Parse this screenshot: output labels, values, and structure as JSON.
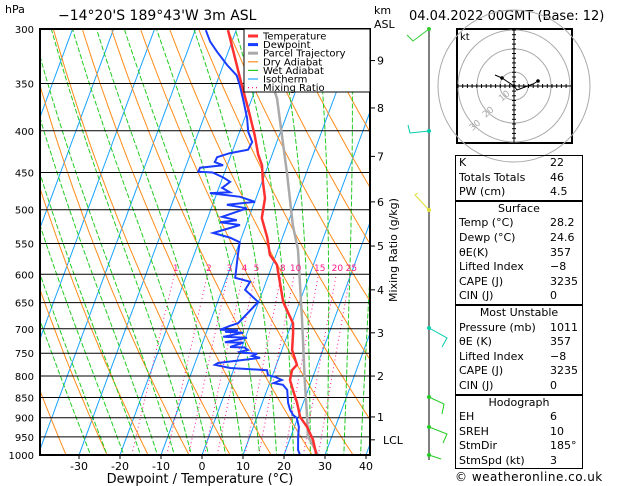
{
  "header": {
    "pressure_unit": "hPa",
    "location": "−14°20'S  189°43'W  3m ASL",
    "height_unit_1": "km",
    "height_unit_2": "ASL",
    "datetime": "04.04.2022  00GMT  (Base: 12)"
  },
  "chart_data": {
    "type": "skew-t",
    "xlabel": "Dewpoint / Temperature (°C)",
    "ylabel": "hPa",
    "y2label": "Mixing Ratio (g/kg)",
    "xlim": [
      -39.5,
      41
    ],
    "ylim": [
      1000,
      300
    ],
    "grid": true,
    "legend_placement": "top-right",
    "x_ticks": [
      "-30",
      "-20",
      "-10",
      "0",
      "10",
      "20",
      "30",
      "40"
    ],
    "pressure_levels": [
      "300",
      "350",
      "400",
      "450",
      "500",
      "550",
      "600",
      "650",
      "700",
      "750",
      "800",
      "850",
      "900",
      "950",
      "1000"
    ],
    "km_ticks": [
      {
        "label": "9",
        "p": 328
      },
      {
        "label": "8",
        "p": 375
      },
      {
        "label": "7",
        "p": 430
      },
      {
        "label": "6",
        "p": 489
      },
      {
        "label": "5",
        "p": 554
      },
      {
        "label": "4",
        "p": 627
      },
      {
        "label": "3",
        "p": 708
      },
      {
        "label": "2",
        "p": 800
      },
      {
        "label": "1",
        "p": 898
      },
      {
        "label": "LCL",
        "p": 958
      }
    ],
    "mixing_ratio_labels": [
      "1",
      "2",
      "3",
      "4",
      "5",
      "8",
      "10",
      "15",
      "20",
      "25"
    ],
    "legend": [
      {
        "name": "Temperature",
        "color": "#ff3030"
      },
      {
        "name": "Dewpoint",
        "color": "#1a3cff"
      },
      {
        "name": "Parcel Trajectory",
        "color": "#aaaaaa"
      },
      {
        "name": "Dry Adiabat",
        "color": "#ff8c1a"
      },
      {
        "name": "Wet Adiabat",
        "color": "#22cc22"
      },
      {
        "name": "Isotherm",
        "color": "#1aa3ff"
      },
      {
        "name": "Mixing Ratio",
        "color": "#ff1a8c"
      }
    ],
    "series": {
      "temperature": [
        [
          301,
          -32.0
        ],
        [
          352,
          -23.6
        ],
        [
          375,
          -20.1
        ],
        [
          405,
          -16.0
        ],
        [
          428,
          -13.4
        ],
        [
          441,
          -11.5
        ],
        [
          462,
          -9.8
        ],
        [
          484,
          -7.8
        ],
        [
          512,
          -6.8
        ],
        [
          541,
          -3.7
        ],
        [
          568,
          -1.5
        ],
        [
          584,
          1.1
        ],
        [
          615,
          3.5
        ],
        [
          649,
          6.0
        ],
        [
          689,
          10.3
        ],
        [
          708,
          11.2
        ],
        [
          743,
          12.5
        ],
        [
          775,
          15.0
        ],
        [
          787,
          14.3
        ],
        [
          809,
          14.7
        ],
        [
          832,
          16.3
        ],
        [
          863,
          18.5
        ],
        [
          898,
          20.5
        ],
        [
          924,
          23.1
        ],
        [
          958,
          25.7
        ],
        [
          994,
          27.6
        ],
        [
          1011,
          28.2
        ]
      ],
      "dewpoint": [
        [
          301,
          -37.4
        ],
        [
          311,
          -35.3
        ],
        [
          320,
          -32.7
        ],
        [
          332,
          -29.1
        ],
        [
          342,
          -25.8
        ],
        [
          352,
          -24.1
        ],
        [
          365,
          -22.2
        ],
        [
          386,
          -19.4
        ],
        [
          401,
          -17.9
        ],
        [
          413,
          -16.0
        ],
        [
          422,
          -16.3
        ],
        [
          426,
          -20.4
        ],
        [
          431,
          -23.2
        ],
        [
          437,
          -23.3
        ],
        [
          441,
          -21.0
        ],
        [
          444,
          -26.4
        ],
        [
          449,
          -26.5
        ],
        [
          450,
          -22.9
        ],
        [
          456,
          -20.0
        ],
        [
          462,
          -17.8
        ],
        [
          470,
          -19.2
        ],
        [
          476,
          -16.9
        ],
        [
          477,
          -21.7
        ],
        [
          482,
          -14.0
        ],
        [
          489,
          -9.9
        ],
        [
          493,
          -16.5
        ],
        [
          498,
          -11.3
        ],
        [
          510,
          -16.6
        ],
        [
          515,
          -12.7
        ],
        [
          518,
          -16.6
        ],
        [
          522,
          -11.5
        ],
        [
          534,
          -17.3
        ],
        [
          541,
          -12.8
        ],
        [
          548,
          -10.0
        ],
        [
          568,
          -9.3
        ],
        [
          606,
          -7.9
        ],
        [
          613,
          -3.9
        ],
        [
          627,
          -4.4
        ],
        [
          649,
          -0.1
        ],
        [
          689,
          -3.1
        ],
        [
          694,
          -4.8
        ],
        [
          702,
          -6.9
        ],
        [
          703,
          -2.5
        ],
        [
          706,
          -5.5
        ],
        [
          708,
          -1.0
        ],
        [
          716,
          -5.5
        ],
        [
          718,
          0.4
        ],
        [
          727,
          -4.6
        ],
        [
          728,
          -0.1
        ],
        [
          737,
          -2.9
        ],
        [
          738,
          0.7
        ],
        [
          743,
          1.7
        ],
        [
          747,
          0.0
        ],
        [
          749,
          0.8
        ],
        [
          751,
          4.3
        ],
        [
          756,
          3.3
        ],
        [
          760,
          5.4
        ],
        [
          771,
          -4.4
        ],
        [
          775,
          -5.0
        ],
        [
          782,
          -1.0
        ],
        [
          787,
          8.2
        ],
        [
          798,
          8.9
        ],
        [
          802,
          10.8
        ],
        [
          809,
          12.7
        ],
        [
          813,
          11.7
        ],
        [
          816,
          11.0
        ],
        [
          818,
          12.0
        ],
        [
          820,
          13.4
        ],
        [
          832,
          14.9
        ],
        [
          863,
          16.3
        ],
        [
          880,
          17.4
        ],
        [
          893,
          18.6
        ],
        [
          901,
          19.8
        ],
        [
          924,
          21.1
        ],
        [
          950,
          21.8
        ],
        [
          986,
          23.0
        ],
        [
          1000,
          23.9
        ],
        [
          1011,
          24.6
        ]
      ],
      "parcel": [
        [
          1011,
          28.2
        ],
        [
          1000,
          28.3
        ],
        [
          962,
          25.3
        ],
        [
          950,
          24.2
        ],
        [
          898,
          22.2
        ],
        [
          816,
          18.6
        ],
        [
          677,
          11.9
        ],
        [
          560,
          4.9
        ],
        [
          522,
          1.4
        ],
        [
          453,
          -4.5
        ],
        [
          365,
          -13.9
        ],
        [
          359,
          -14.9
        ]
      ]
    }
  },
  "wind_barbs": {
    "colors": [
      "#33cc33",
      "#00ccaa",
      "#dddd33",
      "#00ccaa",
      "#22cc22",
      "#22cc22",
      "#22cc22"
    ]
  },
  "hodograph": {
    "unit": "kt",
    "ring_labels": [
      "10",
      "20",
      "30"
    ]
  },
  "indices": {
    "general": [
      {
        "label": "K",
        "value": "22"
      },
      {
        "label": "Totals Totals",
        "value": "46"
      },
      {
        "label": "PW (cm)",
        "value": "4.5"
      }
    ],
    "surface": {
      "title": "Surface",
      "rows": [
        {
          "label": "Temp (°C)",
          "value": "28.2"
        },
        {
          "label": "Dewp (°C)",
          "value": "24.6"
        },
        {
          "label": "θE(K)",
          "value": "357"
        },
        {
          "label": "Lifted Index",
          "value": "−8"
        },
        {
          "label": "CAPE (J)",
          "value": "3235"
        },
        {
          "label": "CIN (J)",
          "value": "0"
        }
      ]
    },
    "most_unstable": {
      "title": "Most Unstable",
      "rows": [
        {
          "label": "Pressure (mb)",
          "value": "1011"
        },
        {
          "label": "θE (K)",
          "value": "357"
        },
        {
          "label": "Lifted Index",
          "value": "−8"
        },
        {
          "label": "CAPE (J)",
          "value": "3235"
        },
        {
          "label": "CIN (J)",
          "value": "0"
        }
      ]
    },
    "hodograph": {
      "title": "Hodograph",
      "rows": [
        {
          "label": "EH",
          "value": "6"
        },
        {
          "label": "SREH",
          "value": "10"
        },
        {
          "label": "StmDir",
          "value": "185°"
        },
        {
          "label": "StmSpd (kt)",
          "value": "3"
        }
      ]
    }
  },
  "copyright": "© weatheronline.co.uk"
}
